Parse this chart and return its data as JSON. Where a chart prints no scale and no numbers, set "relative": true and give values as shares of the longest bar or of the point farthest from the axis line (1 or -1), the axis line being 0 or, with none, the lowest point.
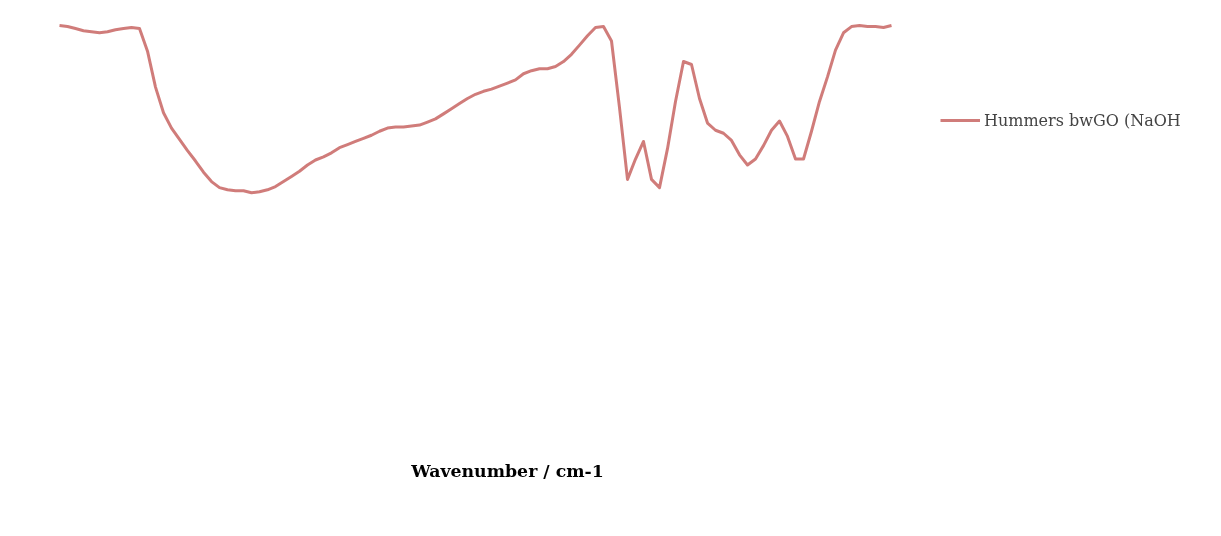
{
  "chart_data": {
    "type": "line",
    "relative": true,
    "annotations": [
      "Wavenumber / cm-1"
    ],
    "legend": "right",
    "grid": false,
    "tick_labels": false,
    "categories": [
      null,
      null,
      null,
      null,
      null,
      null,
      null,
      null,
      null,
      null,
      null,
      null,
      null,
      null,
      null,
      null,
      null,
      null,
      null,
      null,
      null,
      null,
      null,
      null,
      null,
      null,
      null,
      null,
      null,
      null,
      null,
      null,
      null,
      null,
      null,
      null,
      null,
      null,
      null,
      null,
      null,
      null,
      null,
      null,
      null,
      null,
      null,
      null,
      null,
      null,
      null,
      null,
      null,
      null,
      null,
      null,
      null,
      null,
      null,
      null,
      null,
      null,
      null,
      null,
      null,
      null,
      null,
      null,
      null,
      null,
      null,
      null,
      null,
      null,
      null,
      null,
      null,
      null,
      null,
      null,
      null,
      null,
      null,
      null,
      null,
      null,
      null,
      null,
      null,
      null,
      null,
      null,
      null,
      null,
      null,
      null,
      null,
      null,
      null,
      null,
      null,
      null,
      null,
      null,
      null
    ],
    "series": [
      {
        "name": "Hummers bwGO (NaOH",
        "color": "#c0504d",
        "values": [
          1.0,
          0.994,
          0.982,
          0.969,
          0.963,
          0.957,
          0.963,
          0.975,
          0.982,
          0.988,
          0.982,
          0.847,
          0.632,
          0.479,
          0.387,
          0.319,
          0.252,
          0.19,
          0.123,
          0.067,
          0.031,
          0.018,
          0.012,
          0.012,
          0.0,
          0.006,
          0.018,
          0.037,
          0.067,
          0.098,
          0.129,
          0.166,
          0.196,
          0.215,
          0.239,
          0.27,
          0.288,
          0.307,
          0.325,
          0.344,
          0.368,
          0.387,
          0.393,
          0.393,
          0.399,
          0.405,
          0.423,
          0.442,
          0.472,
          0.503,
          0.534,
          0.564,
          0.589,
          0.607,
          0.62,
          0.638,
          0.656,
          0.675,
          0.712,
          0.73,
          0.742,
          0.742,
          0.755,
          0.785,
          0.828,
          0.883,
          0.939,
          0.988,
          0.994,
          0.908,
          0.509,
          0.08,
          0.202,
          0.307,
          0.08,
          0.031,
          0.264,
          0.546,
          0.785,
          0.767,
          0.564,
          0.417,
          0.374,
          0.356,
          0.313,
          0.227,
          0.166,
          0.202,
          0.282,
          0.374,
          0.429,
          0.337,
          0.202,
          0.202,
          0.368,
          0.546,
          0.693,
          0.853,
          0.957,
          0.994,
          1.0,
          0.994,
          0.994,
          0.988,
          1.0
        ]
      }
    ]
  }
}
